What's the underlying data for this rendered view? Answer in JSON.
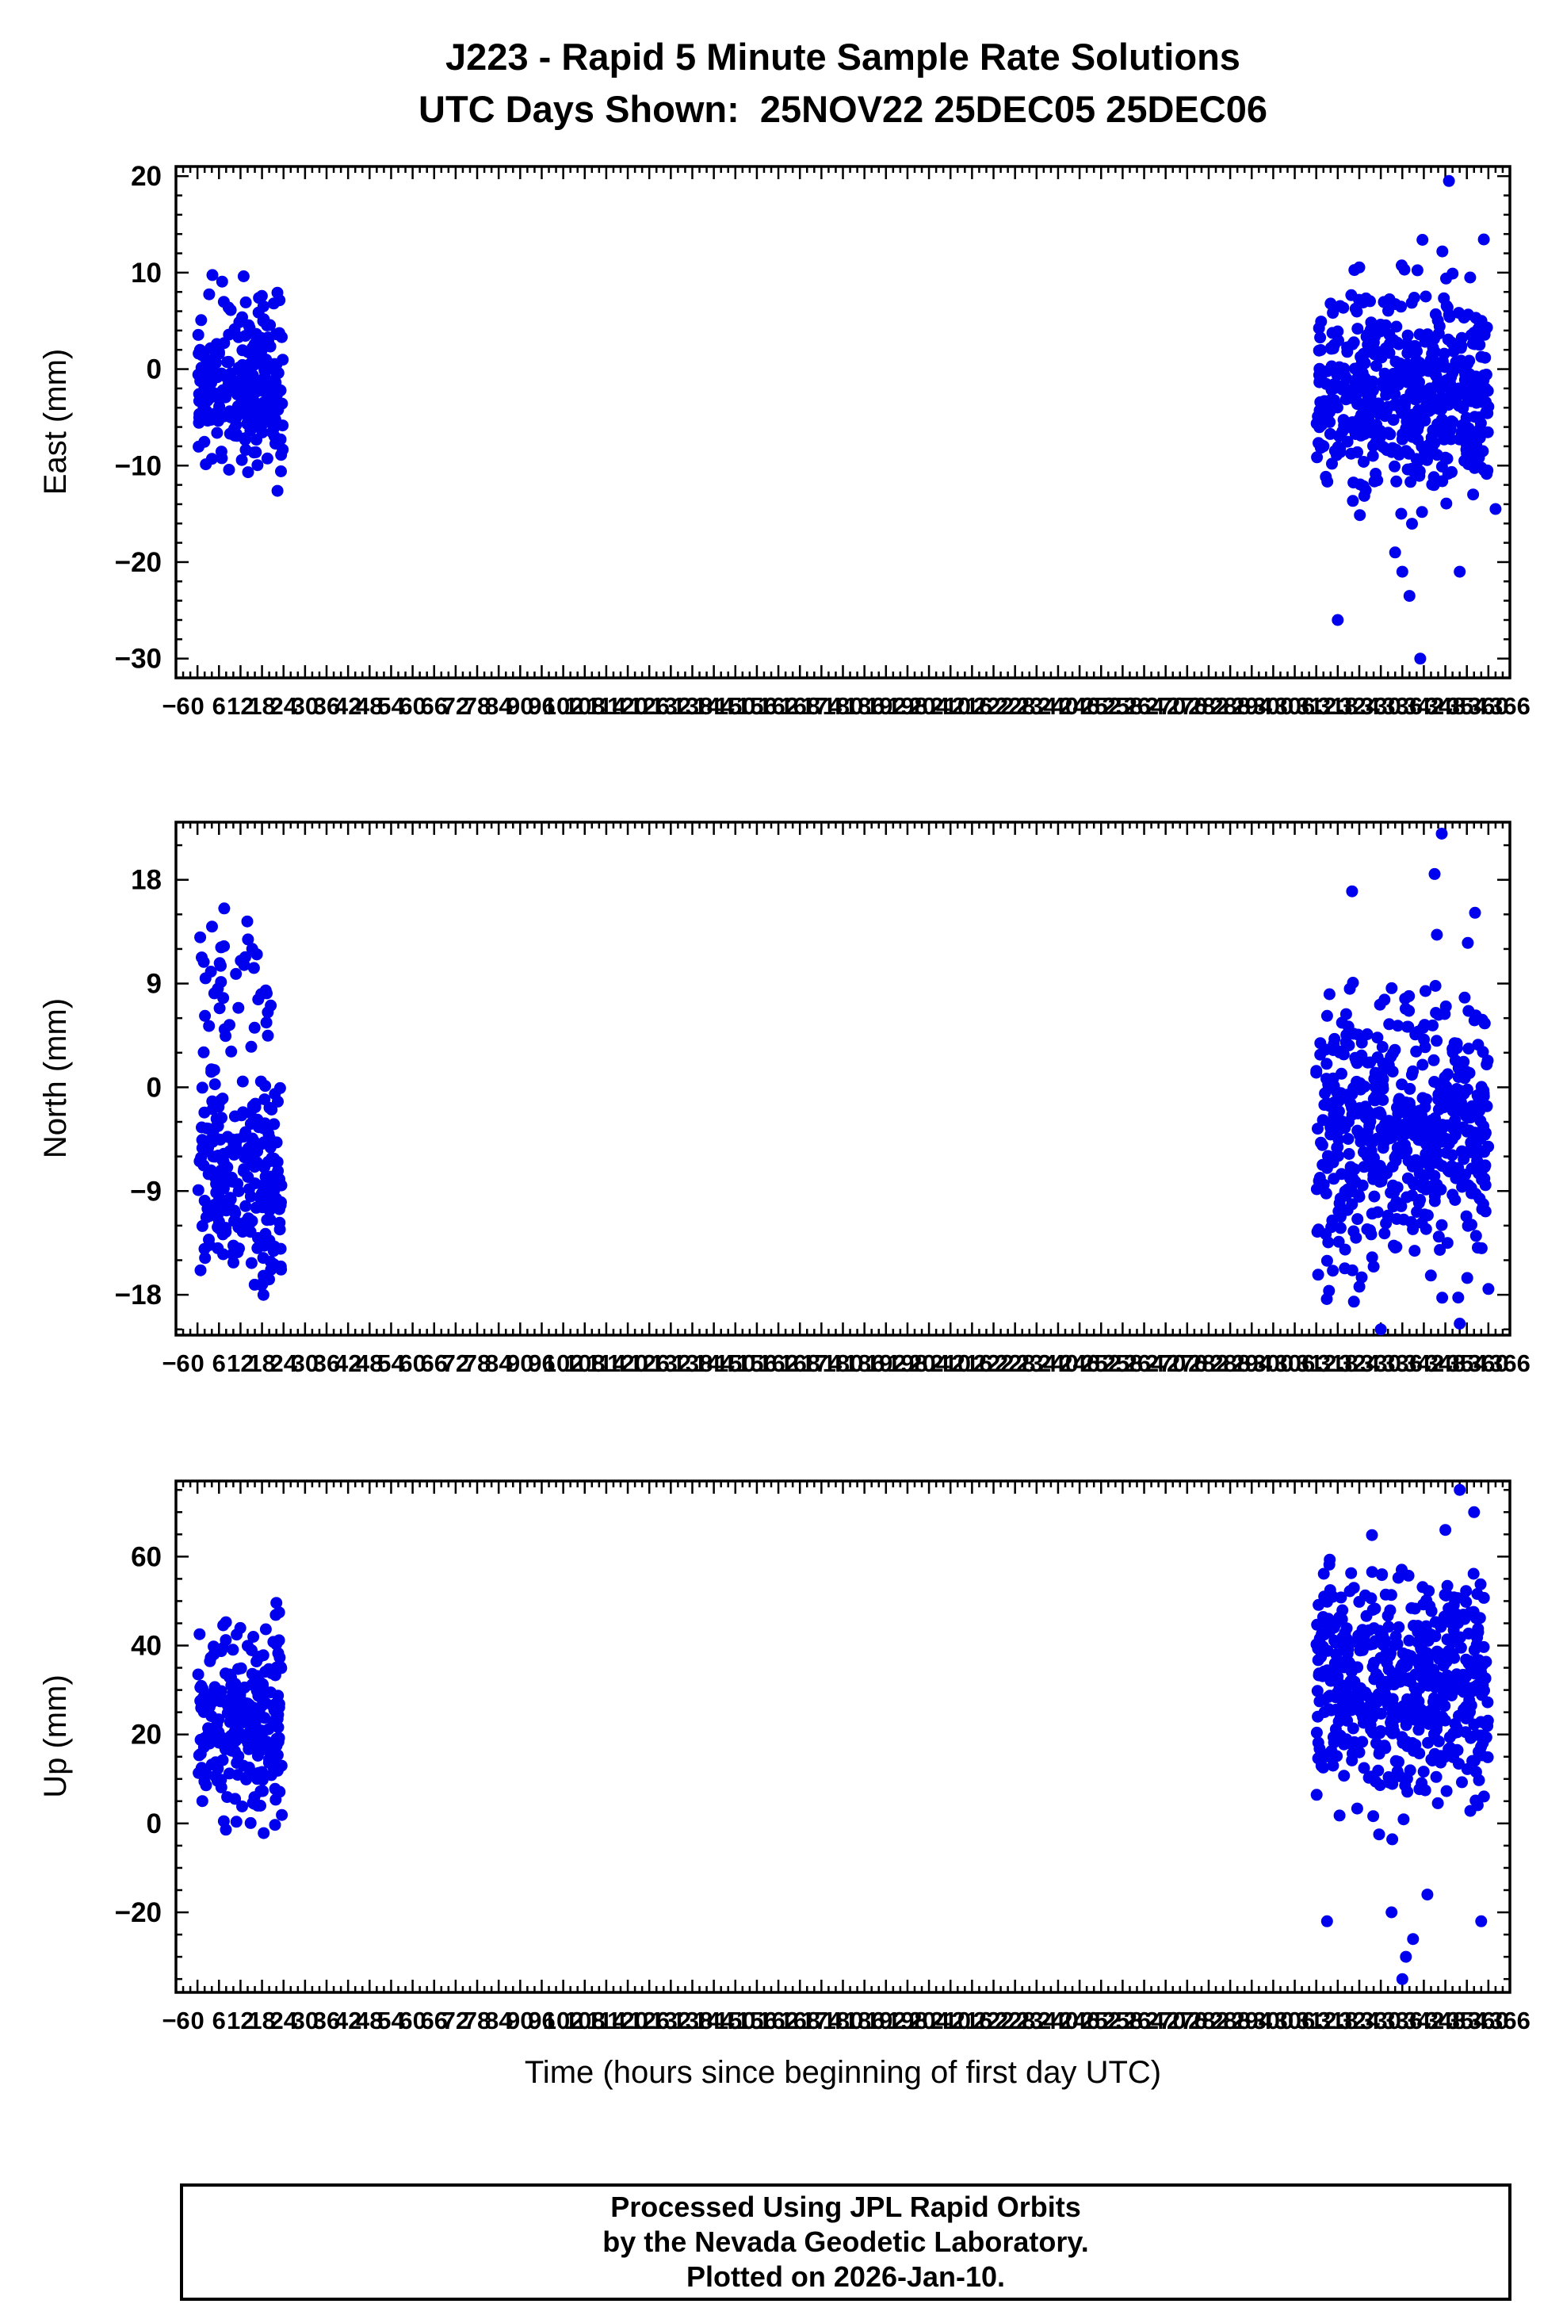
{
  "title": {
    "line1": "J223 - Rapid 5 Minute Sample Rate Solutions",
    "line2": "UTC Days Shown:  25NOV22 25DEC05 25DEC06"
  },
  "xaxis": {
    "title": "Time (hours since beginning of first day UTC)",
    "tick_min": -6,
    "tick_max": 366,
    "tick_step": 6,
    "minor_step": 2
  },
  "footer": {
    "line1": "Processed Using JPL Rapid Orbits",
    "line2": "by the Nevada Geodetic Laboratory.",
    "line3": "Plotted on 2026-Jan-10."
  },
  "colors": {
    "points": "#0000ee",
    "frame": "#000000",
    "text": "#000000"
  },
  "chart_data": [
    {
      "type": "scatter",
      "ylabel": "East (mm)",
      "xlabel": "",
      "xlim": [
        -6,
        366
      ],
      "ylim": [
        -32,
        21
      ],
      "yticks": [
        -30,
        -20,
        -10,
        0,
        10,
        20
      ],
      "y_minor_step": 2,
      "x_ticks": {
        "min": -6,
        "max": 366,
        "step": 6
      },
      "legend": "none",
      "grid": false,
      "series": [
        {
          "name": "day-25NOV22",
          "x_range": [
            0.2,
            23.8
          ],
          "n": 255,
          "y_mean": -2.0,
          "y_sd": 4.5,
          "y_clip": [
            -15,
            10
          ]
        },
        {
          "name": "days-25DEC05-25DEC06",
          "x_range": [
            312,
            360
          ],
          "n": 530,
          "y_mean": -2.5,
          "y_sd": 5.0,
          "y_clip": [
            -24,
            14
          ]
        }
      ],
      "outliers": [
        [
          349,
          19.5
        ],
        [
          341,
          -30
        ],
        [
          338,
          -23.5
        ],
        [
          336,
          -21
        ],
        [
          334,
          -19
        ],
        [
          352,
          -21
        ],
        [
          362,
          -14.5
        ],
        [
          318,
          -26
        ]
      ]
    },
    {
      "type": "scatter",
      "ylabel": "North (mm)",
      "xlabel": "",
      "xlim": [
        -6,
        366
      ],
      "ylim": [
        -21.5,
        23
      ],
      "yticks": [
        -18,
        -9,
        0,
        9,
        18
      ],
      "y_minor_step": 3,
      "x_ticks": {
        "min": -6,
        "max": 366,
        "step": 6
      },
      "legend": "none",
      "grid": false,
      "series": [
        {
          "name": "day-25NOV22-main",
          "x_range": [
            0.2,
            23.8
          ],
          "n": 225,
          "y_mean": -8.0,
          "y_sd": 4.5,
          "y_clip": [
            -19.5,
            4
          ]
        },
        {
          "name": "day-25NOV22-upper",
          "x_range": [
            0.5,
            21
          ],
          "n": 45,
          "y_mean": 8.0,
          "y_sd": 4.0,
          "y_clip": [
            0,
            16
          ]
        },
        {
          "name": "days-25DEC05-25DEC06",
          "x_range": [
            312,
            360
          ],
          "n": 540,
          "y_mean": -4.0,
          "y_sd": 6.0,
          "y_clip": [
            -19,
            16
          ]
        }
      ],
      "outliers": [
        [
          347,
          22
        ],
        [
          345,
          18.5
        ],
        [
          330,
          -21
        ],
        [
          352,
          -20.5
        ],
        [
          360,
          -17.5
        ],
        [
          322,
          17
        ]
      ]
    },
    {
      "type": "scatter",
      "ylabel": "Up (mm)",
      "xlabel": "",
      "xlim": [
        -6,
        366
      ],
      "ylim": [
        -38,
        77
      ],
      "yticks": [
        -20,
        0,
        20,
        40,
        60
      ],
      "y_minor_step": 5,
      "x_ticks": {
        "min": -6,
        "max": 366,
        "step": 6
      },
      "legend": "none",
      "grid": false,
      "series": [
        {
          "name": "day-25NOV22",
          "x_range": [
            0.2,
            23.8
          ],
          "n": 255,
          "y_mean": 22,
          "y_sd": 11,
          "y_clip": [
            -8,
            58
          ]
        },
        {
          "name": "days-25DEC05-25DEC06",
          "x_range": [
            312,
            360
          ],
          "n": 540,
          "y_mean": 30,
          "y_sd": 13,
          "y_clip": [
            -12,
            68
          ]
        }
      ],
      "outliers": [
        [
          352,
          75
        ],
        [
          356,
          70
        ],
        [
          348,
          66
        ],
        [
          336,
          -35
        ],
        [
          337,
          -30
        ],
        [
          339,
          -26
        ],
        [
          315,
          -22
        ],
        [
          358,
          -22
        ],
        [
          343,
          -16
        ],
        [
          333,
          -20
        ]
      ]
    }
  ]
}
